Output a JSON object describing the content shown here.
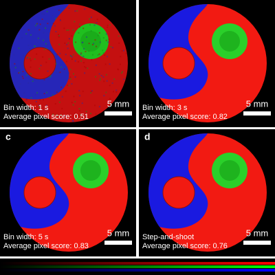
{
  "panels": [
    {
      "bin": "Bin width: 1 s",
      "score": "Average pixel score:  0.51",
      "scale": "5 mm"
    },
    {
      "bin": "Bin width: 3 s",
      "score": "Average pixel score:  0.82",
      "scale": "5 mm"
    },
    {
      "label": "c",
      "bin": "Bin width: 5 s",
      "score": "Average pixel score:  0.83",
      "scale": "5 mm"
    },
    {
      "label": "d",
      "bin": "Step-and-shoot",
      "score": "Average pixel score:  0.76",
      "scale": "5 mm"
    }
  ]
}
